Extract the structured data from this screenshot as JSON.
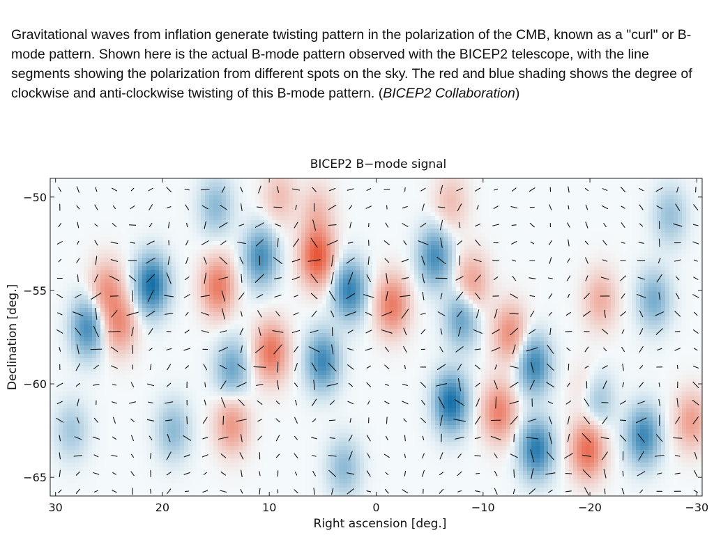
{
  "caption": {
    "main": "Gravitational waves from inflation generate twisting pattern in the polarization of the CMB, known as a \"curl\" or B-mode pattern. Shown here is the actual B-mode pattern observed with the BICEP2 telescope, with the line segments showing the polarization from different spots on the sky. The red and blue shading shows the degree of clockwise and anti-clockwise twisting of this B-mode pattern. (",
    "credit": "BICEP2 Collaboration",
    "end": ")"
  },
  "chart_data": {
    "type": "heatmap",
    "title": "BICEP2 B−mode signal",
    "xlabel": "Right ascension [deg.]",
    "ylabel": "Declination [deg.]",
    "xlim": [
      30.5,
      -30.5
    ],
    "ylim": [
      -66,
      -49
    ],
    "xticks": [
      30,
      20,
      10,
      0,
      -10,
      -20,
      -30
    ],
    "xtick_labels": [
      "30",
      "20",
      "10",
      "0",
      "−10",
      "−20",
      "−30"
    ],
    "yticks": [
      -50,
      -55,
      -60,
      -65
    ],
    "ytick_labels": [
      "−50",
      "−55",
      "−60",
      "−65"
    ],
    "colors": {
      "positive": "#e8583a",
      "negative": "#1670a8",
      "background": "#f4f9fb"
    },
    "blobs": [
      {
        "ra": 5.5,
        "dec": -53.2,
        "amp": 1.0
      },
      {
        "ra": 9.8,
        "dec": -58.3,
        "amp": 0.8
      },
      {
        "ra": 14.8,
        "dec": -54.8,
        "amp": 0.75
      },
      {
        "ra": 25.2,
        "dec": -55.0,
        "amp": 0.55
      },
      {
        "ra": 24.0,
        "dec": -56.8,
        "amp": 0.6
      },
      {
        "ra": -1.5,
        "dec": -55.8,
        "amp": 0.75
      },
      {
        "ra": -9.0,
        "dec": -54.6,
        "amp": 0.5
      },
      {
        "ra": -12.5,
        "dec": -57.3,
        "amp": 0.6
      },
      {
        "ra": -11.5,
        "dec": -61.5,
        "amp": 0.7
      },
      {
        "ra": -19.8,
        "dec": -63.5,
        "amp": 0.85
      },
      {
        "ra": 13.5,
        "dec": -62.2,
        "amp": 0.55
      },
      {
        "ra": -29.5,
        "dec": -62.0,
        "amp": 0.5
      },
      {
        "ra": -21.0,
        "dec": -55.5,
        "amp": 0.4
      },
      {
        "ra": -20.0,
        "dec": -60.5,
        "amp": 0.4
      },
      {
        "ra": 5.5,
        "dec": -50.8,
        "amp": 0.3
      },
      {
        "ra": 9.0,
        "dec": -50.0,
        "amp": 0.3
      },
      {
        "ra": -7.0,
        "dec": -50.3,
        "amp": 0.3
      },
      {
        "ra": 21.0,
        "dec": -54.7,
        "amp": -1.0
      },
      {
        "ra": 27.0,
        "dec": -57.0,
        "amp": -0.75
      },
      {
        "ra": 10.8,
        "dec": -53.2,
        "amp": -0.75
      },
      {
        "ra": 2.5,
        "dec": -55.0,
        "amp": -0.85
      },
      {
        "ra": 5.0,
        "dec": -58.8,
        "amp": -0.8
      },
      {
        "ra": 13.5,
        "dec": -59.2,
        "amp": -0.55
      },
      {
        "ra": -5.5,
        "dec": -53.2,
        "amp": -0.75
      },
      {
        "ra": -8.0,
        "dec": -56.5,
        "amp": -0.6
      },
      {
        "ra": -7.0,
        "dec": -61.0,
        "amp": -1.0
      },
      {
        "ra": -14.8,
        "dec": -59.0,
        "amp": -0.8
      },
      {
        "ra": -15.0,
        "dec": -63.5,
        "amp": -0.9
      },
      {
        "ra": -25.0,
        "dec": -62.8,
        "amp": -0.8
      },
      {
        "ra": -20.5,
        "dec": -60.8,
        "amp": -0.6
      },
      {
        "ra": -26.0,
        "dec": -55.5,
        "amp": -0.5
      },
      {
        "ra": 19.0,
        "dec": -62.5,
        "amp": -0.4
      },
      {
        "ra": 15.0,
        "dec": -50.5,
        "amp": -0.4
      },
      {
        "ra": 28.5,
        "dec": -62.5,
        "amp": -0.3
      },
      {
        "ra": -27.5,
        "dec": -51.0,
        "amp": -0.35
      },
      {
        "ra": 3.0,
        "dec": -64.5,
        "amp": -0.4
      }
    ],
    "vector_grid": {
      "ra_step": 1.7,
      "dec_step": 0.95
    },
    "polarization_vectors": "line segments showing polarization direction at each grid point"
  }
}
